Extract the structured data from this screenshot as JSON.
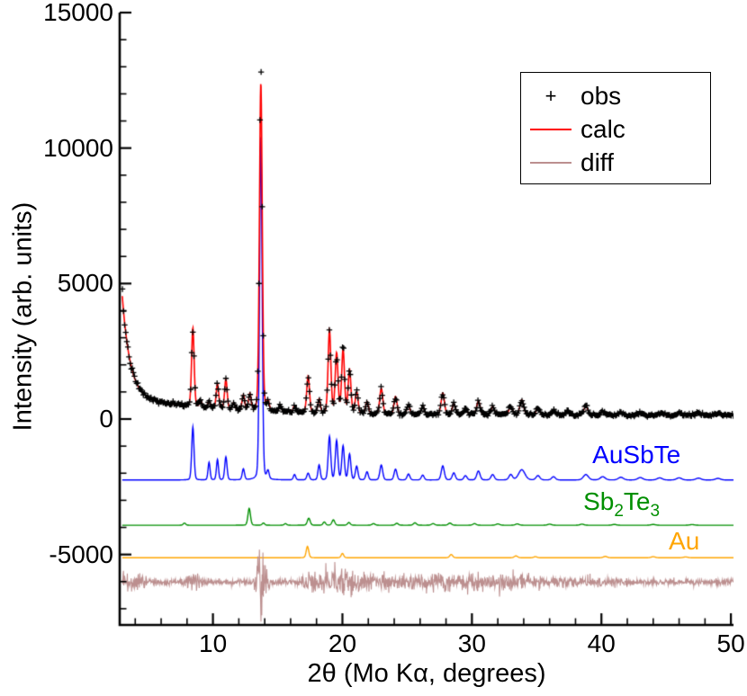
{
  "chart_data": {
    "type": "line",
    "title": "",
    "xlabel": "2θ (Mo Kα, degrees)",
    "ylabel": "Intensity (arb. units)",
    "xlim": [
      2.8,
      50.2
    ],
    "ylim": [
      -7600,
      15000
    ],
    "x_ticks": [
      10,
      20,
      30,
      40,
      50
    ],
    "x_tick_labels": [
      "10",
      "20",
      "30",
      "40",
      "50"
    ],
    "x_minor_step": 2,
    "y_ticks": [
      -5000,
      0,
      5000,
      10000,
      15000
    ],
    "y_tick_labels": [
      "-5000",
      "0",
      "5000",
      "10000",
      "15000"
    ],
    "y_minor_step": 1000,
    "grid": false,
    "legend": {
      "position": "inside-top-right",
      "entries": [
        {
          "label": "obs",
          "marker": "+",
          "color": "#000000"
        },
        {
          "label": "calc",
          "marker": "line",
          "color": "#ff0000"
        },
        {
          "label": "diff",
          "marker": "line",
          "color": "#bc8f8f"
        }
      ]
    },
    "background": {
      "const": 140,
      "exp1": [
        3700,
        0.6
      ],
      "exp2": [
        700,
        7.0
      ]
    },
    "main_peaks": [
      [
        8.45,
        2900,
        0.1
      ],
      [
        9.05,
        250,
        0.09
      ],
      [
        9.7,
        260,
        0.09
      ],
      [
        10.35,
        900,
        0.1
      ],
      [
        11.0,
        1100,
        0.1
      ],
      [
        11.6,
        250,
        0.09
      ],
      [
        12.35,
        550,
        0.1
      ],
      [
        12.85,
        600,
        0.1
      ],
      [
        13.7,
        12100,
        0.11
      ],
      [
        14.25,
        350,
        0.1
      ],
      [
        15.2,
        200,
        0.1
      ],
      [
        16.3,
        250,
        0.1
      ],
      [
        17.35,
        1350,
        0.11
      ],
      [
        18.2,
        500,
        0.1
      ],
      [
        19.0,
        3050,
        0.11
      ],
      [
        19.55,
        2200,
        0.11
      ],
      [
        20.05,
        2350,
        0.11
      ],
      [
        20.55,
        1600,
        0.11
      ],
      [
        21.1,
        800,
        0.11
      ],
      [
        21.9,
        450,
        0.11
      ],
      [
        23.0,
        950,
        0.12
      ],
      [
        24.1,
        650,
        0.12
      ],
      [
        25.1,
        350,
        0.12
      ],
      [
        26.2,
        300,
        0.12
      ],
      [
        27.75,
        800,
        0.13
      ],
      [
        28.6,
        400,
        0.13
      ],
      [
        29.5,
        250,
        0.13
      ],
      [
        30.5,
        500,
        0.14
      ],
      [
        31.6,
        300,
        0.14
      ],
      [
        33.0,
        300,
        0.15
      ],
      [
        33.85,
        550,
        0.15
      ],
      [
        35.1,
        250,
        0.15
      ],
      [
        36.3,
        180,
        0.15
      ],
      [
        37.4,
        150,
        0.15
      ],
      [
        38.8,
        330,
        0.16
      ],
      [
        40.1,
        140,
        0.16
      ],
      [
        41.5,
        110,
        0.16
      ],
      [
        43.0,
        100,
        0.17
      ],
      [
        44.5,
        90,
        0.17
      ],
      [
        46.0,
        80,
        0.18
      ],
      [
        47.5,
        70,
        0.18
      ],
      [
        49.0,
        70,
        0.18
      ]
    ],
    "obs": {
      "color": "#000000",
      "marker": "+",
      "noise_base": 26,
      "noise_rel": 0.02,
      "step": 0.085,
      "seed": 7,
      "extra_peaks": [
        [
          13.7,
          700,
          0.06
        ],
        [
          20.05,
          320,
          0.08
        ]
      ]
    },
    "calc": {
      "color": "#ff0000"
    },
    "phases": [
      {
        "name": "AuSbTe",
        "color": "#0000ff",
        "offset": -2250,
        "label": {
          "text": "AuSbTe",
          "x": 39.3,
          "y": -1650
        },
        "peaks": [
          [
            8.45,
            1950,
            0.09
          ],
          [
            9.7,
            650,
            0.08
          ],
          [
            10.35,
            750,
            0.08
          ],
          [
            11.0,
            850,
            0.09
          ],
          [
            12.35,
            400,
            0.09
          ],
          [
            13.7,
            12650,
            0.1
          ],
          [
            14.25,
            300,
            0.09
          ],
          [
            16.3,
            200,
            0.09
          ],
          [
            17.35,
            250,
            0.1
          ],
          [
            18.2,
            550,
            0.09
          ],
          [
            19.0,
            1600,
            0.1
          ],
          [
            19.55,
            1450,
            0.1
          ],
          [
            20.05,
            1250,
            0.1
          ],
          [
            20.55,
            950,
            0.1
          ],
          [
            21.1,
            500,
            0.1
          ],
          [
            21.9,
            300,
            0.1
          ],
          [
            23.0,
            550,
            0.11
          ],
          [
            24.1,
            400,
            0.11
          ],
          [
            25.1,
            220,
            0.11
          ],
          [
            26.2,
            180,
            0.11
          ],
          [
            27.75,
            520,
            0.12
          ],
          [
            28.6,
            260,
            0.12
          ],
          [
            29.5,
            160,
            0.12
          ],
          [
            30.5,
            330,
            0.13
          ],
          [
            31.6,
            200,
            0.13
          ],
          [
            33.0,
            200,
            0.14
          ],
          [
            33.85,
            380,
            0.25
          ],
          [
            35.1,
            160,
            0.15
          ],
          [
            36.3,
            120,
            0.15
          ],
          [
            38.8,
            200,
            0.2
          ],
          [
            40.1,
            120,
            0.2
          ],
          [
            41.5,
            100,
            0.2
          ],
          [
            43.0,
            90,
            0.2
          ],
          [
            44.5,
            80,
            0.2
          ],
          [
            46.0,
            80,
            0.2
          ],
          [
            47.5,
            70,
            0.2
          ],
          [
            49.0,
            60,
            0.2
          ]
        ]
      },
      {
        "name": "Sb2Te3",
        "color": "#008f00",
        "offset": -3920,
        "label": {
          "x": 38.6,
          "y": -3380,
          "parts": [
            "Sb",
            "2",
            "Te",
            "3"
          ]
        },
        "peaks": [
          [
            7.8,
            80,
            0.1
          ],
          [
            12.8,
            620,
            0.1
          ],
          [
            13.9,
            80,
            0.1
          ],
          [
            15.6,
            60,
            0.1
          ],
          [
            17.4,
            260,
            0.11
          ],
          [
            18.6,
            120,
            0.1
          ],
          [
            19.3,
            200,
            0.11
          ],
          [
            20.5,
            100,
            0.11
          ],
          [
            22.4,
            60,
            0.12
          ],
          [
            24.2,
            70,
            0.12
          ],
          [
            25.6,
            90,
            0.12
          ],
          [
            27.0,
            60,
            0.13
          ],
          [
            28.3,
            80,
            0.13
          ],
          [
            30.2,
            60,
            0.13
          ],
          [
            32.0,
            50,
            0.14
          ],
          [
            33.5,
            50,
            0.14
          ],
          [
            36.0,
            40,
            0.15
          ],
          [
            38.5,
            40,
            0.15
          ],
          [
            41.0,
            30,
            0.16
          ],
          [
            44.0,
            30,
            0.17
          ],
          [
            47.0,
            25,
            0.18
          ]
        ]
      },
      {
        "name": "Au",
        "color": "#ffa500",
        "offset": -5120,
        "label": {
          "text": "Au",
          "x": 45.2,
          "y": -4830
        },
        "peaks": [
          [
            17.3,
            420,
            0.1
          ],
          [
            20.0,
            160,
            0.1
          ],
          [
            28.4,
            120,
            0.12
          ],
          [
            33.4,
            70,
            0.13
          ],
          [
            34.9,
            40,
            0.13
          ],
          [
            40.3,
            50,
            0.15
          ],
          [
            44.0,
            40,
            0.16
          ],
          [
            46.5,
            30,
            0.17
          ]
        ]
      }
    ],
    "diff": {
      "color": "#bc8f8f",
      "offset": -6020,
      "step": 0.03,
      "seed": 99,
      "noise_base": 55,
      "amp_bumps": [
        [
          3.6,
          150,
          0.8
        ],
        [
          8.5,
          170,
          0.4
        ],
        [
          13.7,
          520,
          0.3
        ],
        [
          17.4,
          120,
          0.5
        ],
        [
          19.8,
          240,
          1.2
        ],
        [
          23.5,
          110,
          1.5
        ],
        [
          28.0,
          90,
          2.0
        ],
        [
          31.0,
          70,
          2.0
        ],
        [
          34.0,
          60,
          1.5
        ],
        [
          39.0,
          50,
          1.5
        ]
      ],
      "spikes": [
        [
          13.6,
          520,
          0.05
        ],
        [
          13.72,
          -1000,
          0.05
        ],
        [
          19.9,
          280,
          0.06
        ],
        [
          20.6,
          -220,
          0.05
        ]
      ]
    }
  }
}
